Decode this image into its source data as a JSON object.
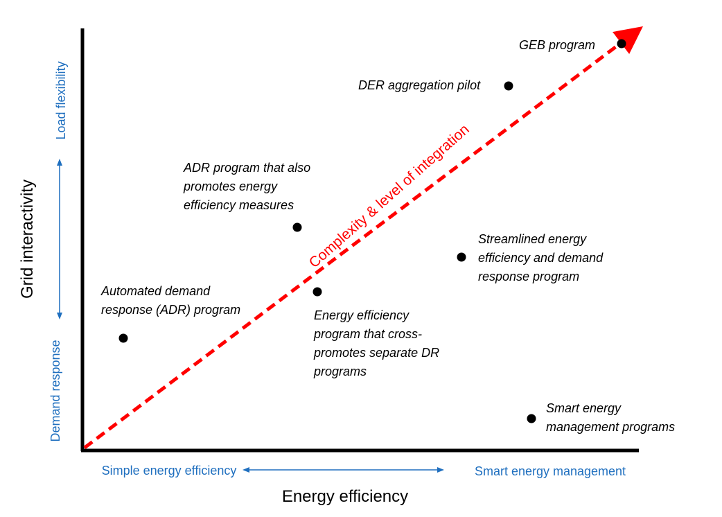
{
  "colors": {
    "axis": "#000000",
    "accent_blue": "#1f6fbf",
    "trend_red": "#ff0000",
    "point": "#000000"
  },
  "axes": {
    "x_title": "Energy efficiency",
    "y_title": "Grid interactivity",
    "x_low": "Simple energy efficiency",
    "x_high": "Smart energy management",
    "y_low": "Demand response",
    "y_high": "Load flexibility"
  },
  "trend": {
    "label": "Complexity & level of integration"
  },
  "programs": [
    {
      "id": "adr",
      "lines": [
        "Automated demand",
        "response (ADR) program"
      ]
    },
    {
      "id": "adr-ee",
      "lines": [
        "ADR program that also",
        "promotes energy",
        "efficiency measures"
      ]
    },
    {
      "id": "ee-cross",
      "lines": [
        "Energy efficiency",
        "program that cross-",
        "promotes separate DR",
        "programs"
      ]
    },
    {
      "id": "streamlined",
      "lines": [
        "Streamlined energy",
        "efficiency and demand",
        "response program"
      ]
    },
    {
      "id": "der",
      "lines": [
        "DER aggregation pilot"
      ]
    },
    {
      "id": "geb",
      "lines": [
        "GEB program"
      ]
    },
    {
      "id": "smart",
      "lines": [
        "Smart energy",
        "management programs"
      ]
    }
  ]
}
